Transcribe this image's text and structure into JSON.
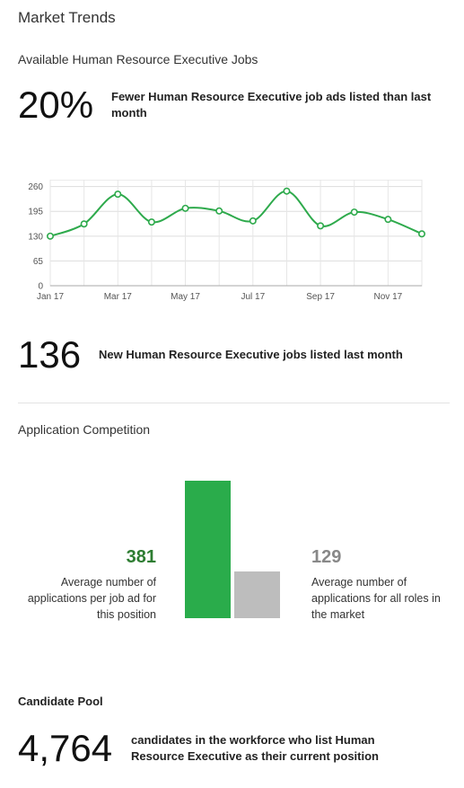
{
  "header": {
    "title": "Market Trends"
  },
  "jobs": {
    "subtitle": "Available Human Resource Executive Jobs",
    "change_value": "20%",
    "change_desc": "Fewer Human Resource Executive job ads listed than last month",
    "new_count": "136",
    "new_desc": "New Human Resource Executive jobs listed last month"
  },
  "chart_data": {
    "type": "line",
    "x": [
      "Jan 17",
      "Feb 17",
      "Mar 17",
      "Apr 17",
      "May 17",
      "Jun 17",
      "Jul 17",
      "Aug 17",
      "Sep 17",
      "Oct 17",
      "Nov 17",
      "Dec 17"
    ],
    "xtick_labels": [
      "Jan 17",
      "Mar 17",
      "May 17",
      "Jul 17",
      "Sep 17",
      "Nov 17"
    ],
    "series": [
      {
        "values": [
          130,
          162,
          240,
          167,
          203,
          196,
          170,
          248,
          157,
          193,
          174,
          136
        ]
      }
    ],
    "yticks": [
      0,
      65,
      130,
      195,
      260
    ],
    "ylim": [
      0,
      278
    ],
    "grid": true,
    "line_color": "#2eaa4c",
    "title": "",
    "xlabel": "",
    "ylabel": ""
  },
  "competition": {
    "title": "Application Competition",
    "position_value": "381",
    "position_desc": [
      "Average number of",
      "applications per job ad for",
      "this position"
    ],
    "market_value": "129",
    "market_desc": [
      "Average number of",
      "applications for all roles in",
      "the market"
    ],
    "position_color": "#2aac4b",
    "market_color": "#bdbdbd",
    "position_num_color": "#2e7d32",
    "market_num_color": "#888888"
  },
  "pool": {
    "title": "Candidate Pool",
    "count": "4,764",
    "desc": "candidates in the workforce who list Human Resource Executive as their current position"
  }
}
